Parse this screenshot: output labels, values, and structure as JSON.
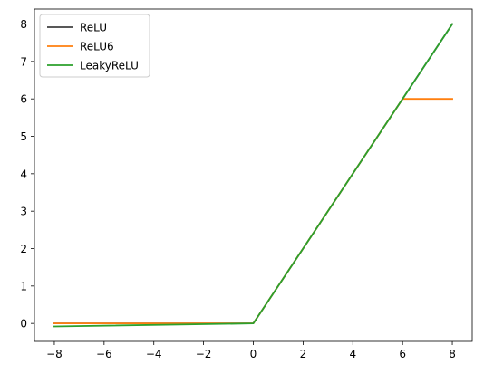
{
  "chart_data": {
    "type": "line",
    "title": "",
    "xlabel": "",
    "ylabel": "",
    "xlim": [
      -8.8,
      8.8
    ],
    "ylim": [
      -0.48,
      8.4
    ],
    "xticks": [
      -8,
      -6,
      -4,
      -2,
      0,
      2,
      4,
      6,
      8
    ],
    "xtick_labels": [
      "−8",
      "−6",
      "−4",
      "−2",
      "0",
      "2",
      "4",
      "6",
      "8"
    ],
    "yticks": [
      0,
      1,
      2,
      3,
      4,
      5,
      6,
      7,
      8
    ],
    "ytick_labels": [
      "0",
      "1",
      "2",
      "3",
      "4",
      "5",
      "6",
      "7",
      "8"
    ],
    "grid": false,
    "legend_position": "top-left",
    "series": [
      {
        "name": "ReLU",
        "color": "#404040",
        "x": [
          -8,
          0,
          8
        ],
        "y": [
          0,
          0,
          8
        ]
      },
      {
        "name": "ReLU6",
        "color": "#ff7f0e",
        "x": [
          -8,
          0,
          6,
          8
        ],
        "y": [
          0,
          0,
          6,
          6
        ]
      },
      {
        "name": "LeakyReLU",
        "color": "#2ca02c",
        "x": [
          -8,
          0,
          8
        ],
        "y": [
          -0.08,
          0,
          8
        ]
      }
    ]
  }
}
